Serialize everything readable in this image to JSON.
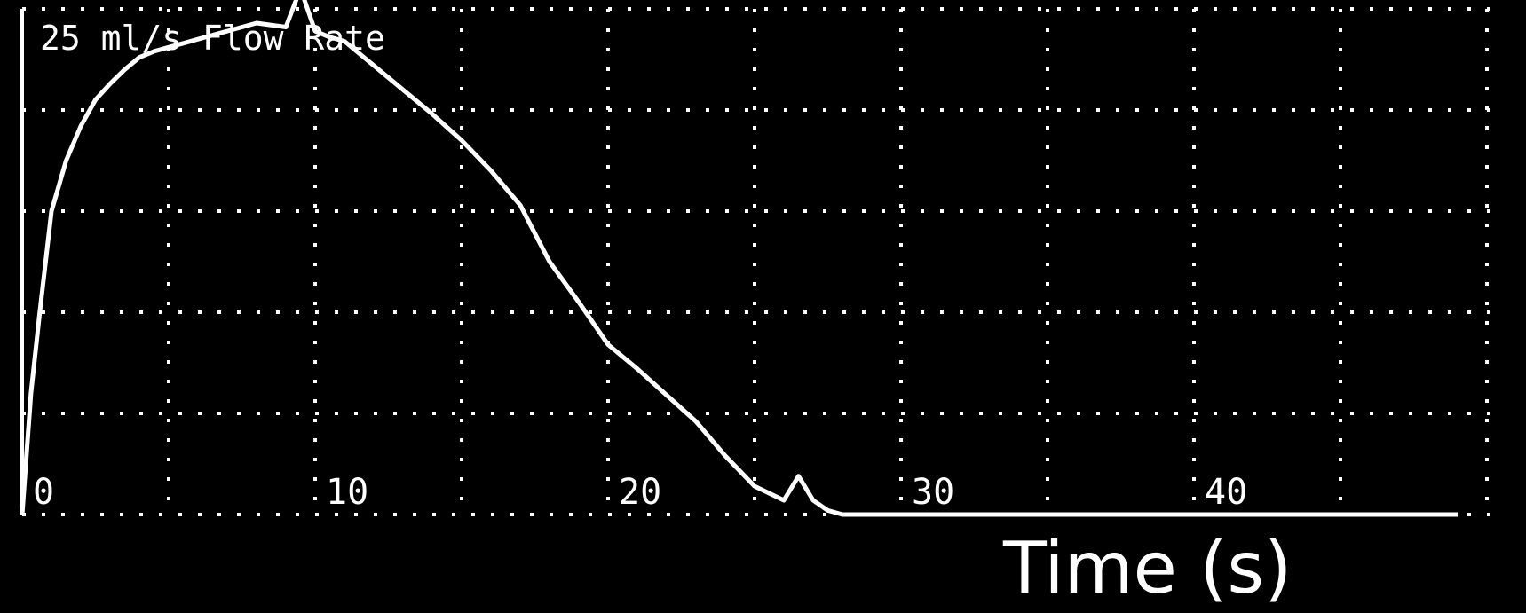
{
  "chart_data": {
    "type": "line",
    "title": "25 ml/s Flow Rate",
    "xlabel": "Time (s)",
    "ylabel": "",
    "xlim": [
      0,
      50
    ],
    "ylim": [
      0,
      25
    ],
    "x_ticks": [
      0,
      10,
      20,
      30,
      40
    ],
    "x_tick_labels": [
      "0",
      "10",
      "20",
      "30",
      "40"
    ],
    "y_gridlines": [
      5,
      10,
      15,
      20
    ],
    "grid": true,
    "colors": {
      "background": "#000000",
      "line": "#ffffff",
      "grid": "#ffffff"
    },
    "series": [
      {
        "x": [
          0,
          0.3,
          0.6,
          1,
          1.5,
          2,
          2.5,
          3,
          3.5,
          4,
          4.5,
          5,
          5.5,
          6,
          7,
          8,
          9,
          9.5,
          10,
          10.5,
          11,
          12,
          13,
          14,
          15,
          16,
          17,
          18,
          19,
          20,
          21,
          22,
          23,
          24,
          25,
          26,
          26.5,
          27,
          27.5,
          28,
          28.3,
          28.6,
          29,
          30,
          35,
          40,
          45,
          49
        ],
        "y": [
          0,
          6,
          10,
          15,
          17.5,
          19.2,
          20.5,
          21.3,
          22,
          22.6,
          22.9,
          23.1,
          23.3,
          23.5,
          23.9,
          24.3,
          24.1,
          26,
          23.9,
          23.6,
          23.4,
          22.2,
          21,
          19.8,
          18.5,
          17,
          15.3,
          12.5,
          10.5,
          8.4,
          7.2,
          5.9,
          4.6,
          2.9,
          1.4,
          0.7,
          1.9,
          0.7,
          0.2,
          0,
          0,
          0,
          0,
          0,
          0,
          0,
          0,
          0
        ]
      }
    ]
  }
}
